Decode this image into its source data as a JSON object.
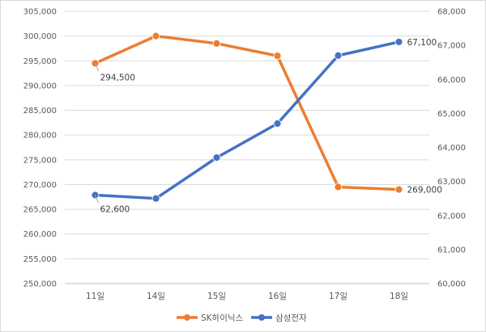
{
  "chart_data": {
    "type": "line",
    "categories": [
      "11일",
      "14일",
      "15일",
      "16일",
      "17일",
      "18일"
    ],
    "y_left": {
      "min": 250000,
      "max": 305000,
      "step": 5000,
      "ticks": [
        "250,000",
        "255,000",
        "260,000",
        "265,000",
        "270,000",
        "275,000",
        "280,000",
        "285,000",
        "290,000",
        "295,000",
        "300,000",
        "305,000"
      ]
    },
    "y_right": {
      "min": 60000,
      "max": 68000,
      "step": 1000,
      "ticks": [
        "60,000",
        "61,000",
        "62,000",
        "63,000",
        "64,000",
        "65,000",
        "66,000",
        "67,000",
        "68,000"
      ]
    },
    "series": [
      {
        "name": "SK하이닉스",
        "axis": "left",
        "color": "#ed7d31",
        "values": [
          294500,
          300000,
          298500,
          296000,
          269500,
          269000
        ],
        "labels": [
          {
            "index": 0,
            "text": "294,500"
          },
          {
            "index": 5,
            "text": "269,000"
          }
        ]
      },
      {
        "name": "삼성전자",
        "axis": "right",
        "color": "#4472c4",
        "values": [
          62600,
          62500,
          63700,
          64700,
          66700,
          67100
        ],
        "labels": [
          {
            "index": 0,
            "text": "62,600"
          },
          {
            "index": 5,
            "text": "67,100"
          }
        ]
      }
    ],
    "grid": true,
    "legend": "bottom"
  }
}
